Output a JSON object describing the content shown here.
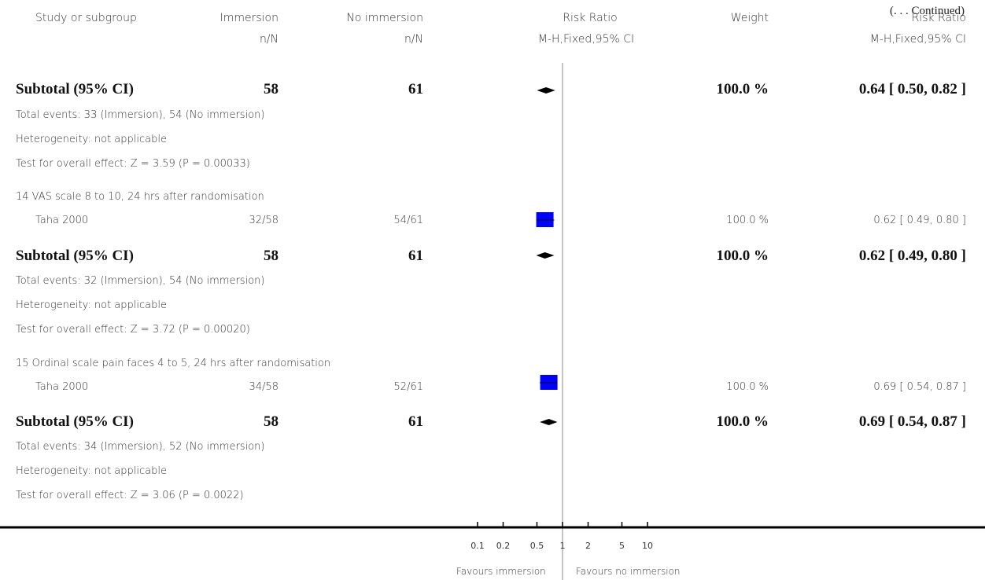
{
  "continued": "(. . . Continued)",
  "header": {
    "study_or_subgroup": "Study or subgroup",
    "immersion": "Immersion",
    "no_immersion": "No immersion",
    "risk_ratio": "Risk Ratio",
    "weight": "Weight",
    "risk_ratio_right": "Risk Ratio",
    "nN_1": "n/N",
    "nN_2": "n/N",
    "method": "M-H,Fixed,95% CI",
    "method_right": "M-H,Fixed,95% CI"
  },
  "subgroup_13_subtotal": {
    "label": "Subtotal (95% CI)",
    "imm": "58",
    "noimm": "61",
    "weight": "100.0 %",
    "rr": "0.64 [ 0.50, 0.82 ]",
    "events": "Total events: 33 (Immersion), 54 (No immersion)",
    "heterogeneity": "Heterogeneity: not applicable",
    "overall": "Test for overall effect: Z = 3.59 (P = 0.00033)"
  },
  "subgroup_14": {
    "title": "14 VAS scale 8 to 10, 24 hrs after randomisation",
    "study": "Taha 2000",
    "imm": "32/58",
    "noimm": "54/61",
    "weight": "100.0 %",
    "rr": "0.62 [ 0.49, 0.80 ]",
    "sub_label": "Subtotal (95% CI)",
    "sub_imm": "58",
    "sub_noimm": "61",
    "sub_weight": "100.0 %",
    "sub_rr": "0.62 [ 0.49, 0.80 ]",
    "events": "Total events: 32 (Immersion), 54 (No immersion)",
    "heterogeneity": "Heterogeneity: not applicable",
    "overall": "Test for overall effect: Z = 3.72 (P = 0.00020)"
  },
  "subgroup_15": {
    "title": "15 Ordinal scale pain faces 4 to 5, 24 hrs after randomisation",
    "study": "Taha 2000",
    "imm": "34/58",
    "noimm": "52/61",
    "weight": "100.0 %",
    "rr": "0.69 [ 0.54, 0.87 ]",
    "sub_label": "Subtotal (95% CI)",
    "sub_imm": "58",
    "sub_noimm": "61",
    "sub_weight": "100.0 %",
    "sub_rr": "0.69 [ 0.54, 0.87 ]",
    "events": "Total events: 34 (Immersion), 52 (No immersion)",
    "heterogeneity": "Heterogeneity: not applicable",
    "overall": "Test for overall effect: Z = 3.06 (P = 0.0022)"
  },
  "axis": {
    "favours_left": "Favours immersion",
    "favours_right": "Favours no immersion"
  },
  "colors": {
    "box": "#0000ff",
    "line": "#000000"
  },
  "chart_data": {
    "type": "scatter",
    "scale": "log",
    "xlim": [
      0.1,
      10
    ],
    "ticks": [
      0.1,
      0.2,
      0.5,
      1,
      2,
      5,
      10
    ],
    "tick_labels": [
      "0.1",
      "0.2",
      "0.5",
      "1",
      "2",
      "5",
      "10"
    ],
    "null_line": 1,
    "rows": [
      {
        "kind": "diamond",
        "rr": 0.64,
        "lo": 0.5,
        "hi": 0.82
      },
      {
        "kind": "box",
        "rr": 0.62,
        "lo": 0.49,
        "hi": 0.8
      },
      {
        "kind": "diamond",
        "rr": 0.62,
        "lo": 0.49,
        "hi": 0.8
      },
      {
        "kind": "box",
        "rr": 0.69,
        "lo": 0.54,
        "hi": 0.87
      },
      {
        "kind": "diamond",
        "rr": 0.69,
        "lo": 0.54,
        "hi": 0.87
      }
    ]
  }
}
